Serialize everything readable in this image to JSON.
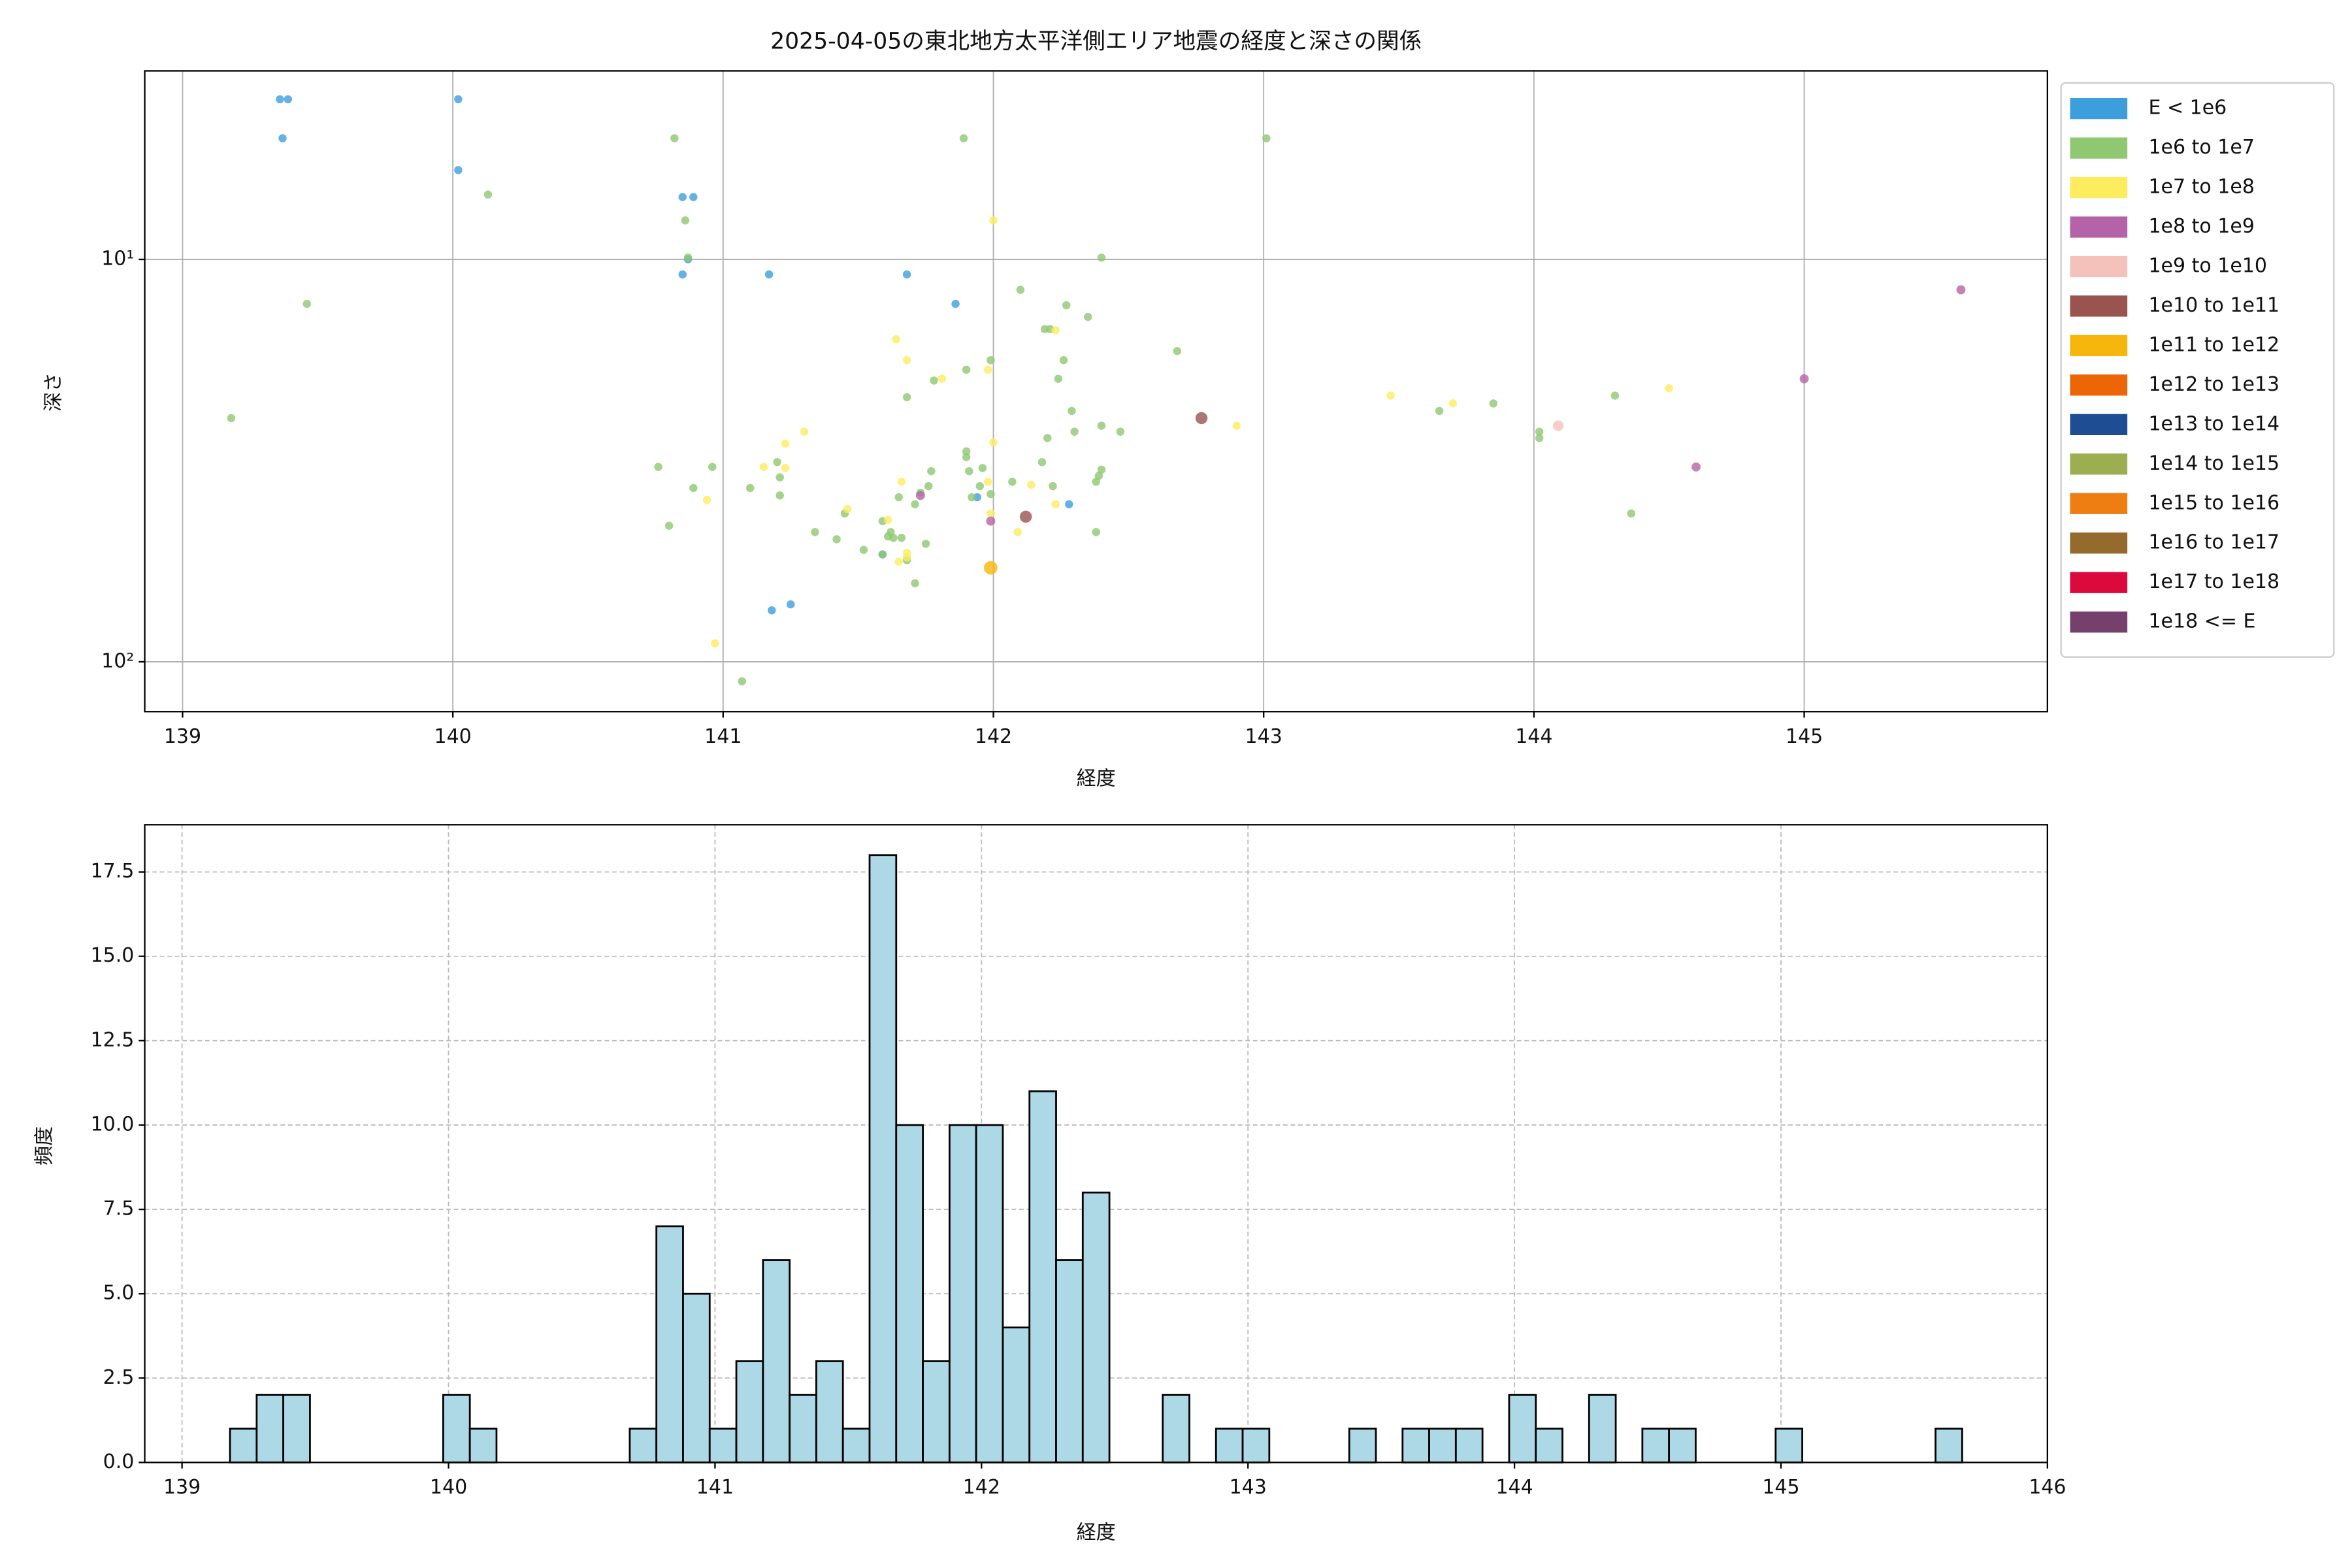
{
  "chart_data": [
    {
      "type": "scatter",
      "title": "2025-04-05の東北地方太平洋側エリア地震の経度と深さの関係",
      "x_label": "経度",
      "y_label": "深さ",
      "xlim": [
        138.86,
        145.9
      ],
      "xticks": [
        139,
        140,
        141,
        142,
        143,
        144,
        145
      ],
      "ylim": [
        133,
        3.4
      ],
      "log_y": true,
      "yticks": [
        {
          "value": 10,
          "label": "10¹"
        },
        {
          "value": 100,
          "label": "10²"
        }
      ],
      "grid": true,
      "grid_linestyle": "solid",
      "legend_loc": "outside-right",
      "series": [
        {
          "name": "E < 1e6",
          "color": "#3c9fdc",
          "x": [
            139.36,
            139.39,
            139.37,
            140.02,
            140.02,
            140.85,
            140.89,
            140.87,
            140.85,
            141.17,
            141.68,
            141.86,
            141.94,
            142.28,
            141.59,
            141.18,
            141.25
          ],
          "values": [
            4.0,
            4.0,
            5.0,
            4.0,
            6.0,
            7.0,
            7.0,
            10.0,
            10.9,
            10.9,
            10.9,
            12.9,
            39.0,
            40.6,
            54.1,
            74.5,
            72.0
          ]
        },
        {
          "name": "1e6 to 1e7",
          "color": "#8fc870",
          "x": [
            139.18,
            139.46,
            140.13,
            140.82,
            140.86,
            140.87,
            141.89,
            143.01,
            142.4,
            142.1,
            142.27,
            142.35,
            142.19,
            142.21,
            142.68,
            141.99,
            141.9,
            142.24,
            142.26,
            141.68,
            141.78,
            142.29,
            142.3,
            142.2,
            142.4,
            142.47,
            141.9,
            141.9,
            141.91,
            141.96,
            142.18,
            142.4,
            142.39,
            142.38,
            142.22,
            142.07,
            141.95,
            141.99,
            141.92,
            141.77,
            141.76,
            141.73,
            141.71,
            141.65,
            141.59,
            141.62,
            141.63,
            141.61,
            141.66,
            141.59,
            141.52,
            141.42,
            141.34,
            141.45,
            141.75,
            141.68,
            141.71,
            141.2,
            141.21,
            141.21,
            141.1,
            140.96,
            140.89,
            140.76,
            140.8,
            141.07,
            142.38,
            143.65,
            143.85,
            144.02,
            144.02,
            144.3,
            144.36
          ],
          "values": [
            24.8,
            12.9,
            6.9,
            5.0,
            8.0,
            9.9,
            5.0,
            5.0,
            9.9,
            11.9,
            13.0,
            13.9,
            14.9,
            14.9,
            16.9,
            17.8,
            18.8,
            19.8,
            17.8,
            22.0,
            20.0,
            23.8,
            26.8,
            27.8,
            25.9,
            26.8,
            30.0,
            31.0,
            33.6,
            33.0,
            31.9,
            33.3,
            34.5,
            35.7,
            36.6,
            35.7,
            36.6,
            38.3,
            39.0,
            33.6,
            36.6,
            38.0,
            40.6,
            39.0,
            44.7,
            47.6,
            49.2,
            48.8,
            49.2,
            54.1,
            52.7,
            49.6,
            47.6,
            42.8,
            50.9,
            55.9,
            63.8,
            31.9,
            34.8,
            38.6,
            37.0,
            32.8,
            37.0,
            32.8,
            45.9,
            111.8,
            47.6,
            23.8,
            22.8,
            26.8,
            27.8,
            21.8,
            42.8
          ]
        },
        {
          "name": "1e7 to 1e8",
          "color": "#fdec5e",
          "x": [
            142.0,
            141.64,
            141.68,
            141.81,
            141.98,
            142.0,
            141.3,
            141.23,
            141.23,
            141.15,
            140.94,
            141.46,
            141.61,
            141.68,
            141.65,
            141.68,
            141.99,
            142.09,
            142.23,
            142.23,
            143.47,
            143.7,
            144.5,
            142.9,
            140.97,
            141.98,
            142.14,
            141.66
          ],
          "values": [
            8.0,
            15.8,
            17.8,
            19.8,
            18.8,
            28.5,
            26.8,
            28.7,
            33.0,
            32.8,
            39.6,
            41.7,
            44.4,
            55.0,
            56.4,
            53.6,
            42.8,
            47.6,
            15.0,
            40.6,
            21.8,
            22.8,
            20.9,
            25.9,
            90.0,
            35.7,
            36.3,
            35.7
          ]
        },
        {
          "name": "1e8 to 1e9",
          "color": "#b563a8",
          "x": [
            145.0,
            145.58,
            144.6,
            141.73,
            141.99
          ],
          "values": [
            19.8,
            11.9,
            32.8,
            38.6,
            44.7
          ]
        },
        {
          "name": "1e9 to 1e10",
          "color": "#f4c2bb",
          "x": [
            144.09
          ],
          "values": [
            25.9
          ]
        },
        {
          "name": "1e10 to 1e11",
          "color": "#995450",
          "x": [
            142.77,
            142.12
          ],
          "values": [
            24.8,
            43.6
          ]
        },
        {
          "name": "1e11 to 1e12",
          "color": "#f6b60c",
          "x": [
            141.99
          ],
          "values": [
            58.4
          ]
        },
        {
          "name": "1e12 to 1e13",
          "color": "#ec6608",
          "x": [],
          "values": []
        },
        {
          "name": "1e13 to 1e14",
          "color": "#1e4d94",
          "x": [],
          "values": []
        },
        {
          "name": "1e14 to 1e15",
          "color": "#9cae50",
          "x": [],
          "values": []
        },
        {
          "name": "1e15 to 1e16",
          "color": "#ee7e12",
          "x": [],
          "values": []
        },
        {
          "name": "1e16 to 1e17",
          "color": "#946b2d",
          "x": [],
          "values": []
        },
        {
          "name": "1e17 to 1e18",
          "color": "#dc0a3c",
          "x": [],
          "values": []
        },
        {
          "name": "1e18 <= E",
          "color": "#76406c",
          "x": [],
          "values": []
        }
      ]
    },
    {
      "type": "histogram",
      "x_label": "経度",
      "y_label": "頻度",
      "color": "#add8e6",
      "edge_color": "#000000",
      "xlim": [
        138.86,
        146.0
      ],
      "xticks": [
        139,
        140,
        141,
        142,
        143,
        144,
        145,
        146
      ],
      "ylim": [
        0,
        18.9
      ],
      "yticks": [
        {
          "value": 0,
          "label": "0.0"
        },
        2.5,
        {
          "value": 5,
          "label": "5.0"
        },
        7.5,
        {
          "value": 10,
          "label": "10.0"
        },
        12.5,
        {
          "value": 15,
          "label": "15.0"
        },
        17.5
      ],
      "grid": true,
      "grid_linestyle": "dashed",
      "bins": [
        139.18,
        139.28,
        139.38,
        139.48,
        139.58,
        139.68,
        139.78,
        139.88,
        139.98,
        140.08,
        140.18,
        140.28,
        140.38,
        140.48,
        140.58,
        140.68,
        140.78,
        140.88,
        140.98,
        141.08,
        141.18,
        141.28,
        141.38,
        141.48,
        141.58,
        141.68,
        141.78,
        141.88,
        141.98,
        142.08,
        142.18,
        142.28,
        142.38,
        142.48,
        142.58,
        142.68,
        142.78,
        142.88,
        142.98,
        143.08,
        143.18,
        143.28,
        143.38,
        143.48,
        143.58,
        143.68,
        143.78,
        143.88,
        143.98,
        144.08,
        144.18,
        144.28,
        144.38,
        144.48,
        144.58,
        144.68,
        144.78,
        144.88,
        144.98,
        145.08,
        145.18,
        145.28,
        145.38,
        145.48,
        145.58,
        145.68
      ],
      "values": [
        1,
        2,
        2,
        0,
        0,
        0,
        0,
        0,
        2,
        1,
        0,
        0,
        0,
        0,
        0,
        1,
        7,
        5,
        1,
        3,
        6,
        2,
        3,
        1,
        18,
        10,
        3,
        10,
        10,
        4,
        11,
        6,
        8,
        0,
        0,
        2,
        0,
        1,
        1,
        0,
        0,
        0,
        1,
        0,
        1,
        1,
        1,
        0,
        2,
        1,
        0,
        2,
        0,
        1,
        1,
        0,
        0,
        0,
        1,
        0,
        0,
        0,
        0,
        0,
        1
      ]
    }
  ]
}
